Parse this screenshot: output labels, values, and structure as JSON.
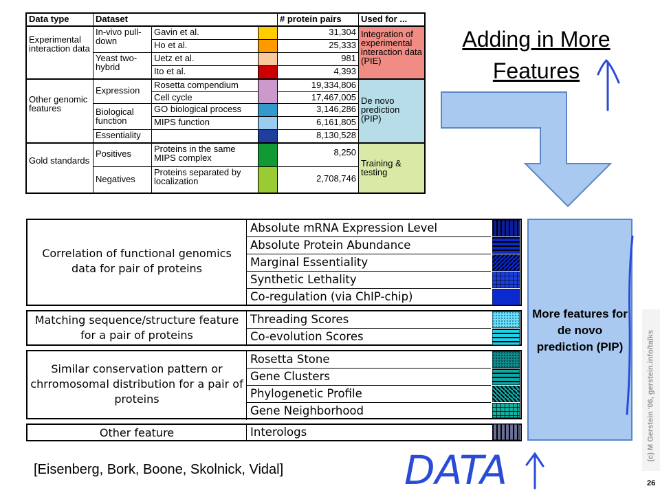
{
  "slide_title": "Adding in More Features",
  "top_table": {
    "headers": [
      "Data type",
      "Dataset",
      "# protein pairs",
      "Used for ..."
    ],
    "groups": [
      {
        "label": "Experimental interaction data",
        "used_for": "Integration of experimental interaction data (PIE)",
        "used_color": "#f08c84"
      },
      {
        "label": "Other genomic features",
        "used_for": "De novo prediction (PIP)",
        "used_color": "#b7dde8"
      },
      {
        "label": "Gold standards",
        "used_for": "Training & testing",
        "used_color": "#d8eaa6"
      }
    ],
    "subgroups": [
      "In-vivo pull-down",
      "Yeast two-hybrid",
      "Expression",
      "Biological function",
      "Essentiality",
      "Positives",
      "Negatives"
    ],
    "rows": [
      {
        "dataset": "Gavin et al.",
        "pairs": "31,304",
        "color": "#ffcc00"
      },
      {
        "dataset": "Ho et al.",
        "pairs": "25,333",
        "color": "#ff9900"
      },
      {
        "dataset": "Uetz et al.",
        "pairs": "981",
        "color": "#f9c99b"
      },
      {
        "dataset": "Ito et al.",
        "pairs": "4,393",
        "color": "#cc0000"
      },
      {
        "dataset": "Rosetta compendium",
        "pairs": "19,334,806",
        "color": "#cc99cc"
      },
      {
        "dataset": "Cell cycle",
        "pairs": "17,467,005",
        "color": "#cc99cc"
      },
      {
        "dataset": "GO biological process",
        "pairs": "3,146,286",
        "color": "#3399cc"
      },
      {
        "dataset": "MIPS function",
        "pairs": "6,161,805",
        "color": "#99ccee"
      },
      {
        "dataset": "",
        "pairs": "8,130,528",
        "color": "#1f3f9f"
      },
      {
        "dataset": "Proteins in the same MIPS complex",
        "pairs": "8,250",
        "color": "#119933"
      },
      {
        "dataset": "Proteins separated by localization",
        "pairs": "2,708,746",
        "color": "#99cc33"
      }
    ]
  },
  "feature_table": {
    "groups": [
      {
        "label": "Correlation of functional genomics data for pair of proteins"
      },
      {
        "label": "Matching sequence/structure feature for a pair of proteins"
      },
      {
        "label": "Similar conservation pattern or chrromosomal distribution for a pair of proteins"
      },
      {
        "label": "Other feature"
      }
    ],
    "features": [
      {
        "label": "Absolute mRNA Expression Level",
        "pattern": "vertical-stripes-blue"
      },
      {
        "label": "Absolute Protein Abundance",
        "pattern": "horizontal-stripes-blue"
      },
      {
        "label": "Marginal Essentiality",
        "pattern": "diagonal-stripes-blue"
      },
      {
        "label": "Synthetic Lethality",
        "pattern": "grid-blue"
      },
      {
        "label": "Co-regulation (via ChIP-chip)",
        "pattern": "solid-blue"
      },
      {
        "label": "Threading Scores",
        "pattern": "dots-cyan"
      },
      {
        "label": "Co-evolution Scores",
        "pattern": "horizontal-stripes-cyan"
      },
      {
        "label": "Rosetta Stone",
        "pattern": "dots-teal"
      },
      {
        "label": "Gene Clusters",
        "pattern": "horizontal-stripes-teal"
      },
      {
        "label": "Phylogenetic Profile",
        "pattern": "diagonal-stripes-teal"
      },
      {
        "label": "Gene Neighborhood",
        "pattern": "grid-teal"
      },
      {
        "label": "Interologs",
        "pattern": "vertical-stripes-slate"
      }
    ],
    "pip_label": "More features for de novo prediction (PIP)"
  },
  "citation": "[Eisenberg, Bork, Boone, Skolnick, Vidal]",
  "handwriting": "DATA",
  "sidebar_credit": "(c) M Gerstein '06, gerstein.info/talks",
  "slide_number": "26",
  "colors": {
    "arrow_fill": "#a9c9f0",
    "arrow_stroke": "#5a86c8",
    "ink": "#2a4bd6"
  }
}
